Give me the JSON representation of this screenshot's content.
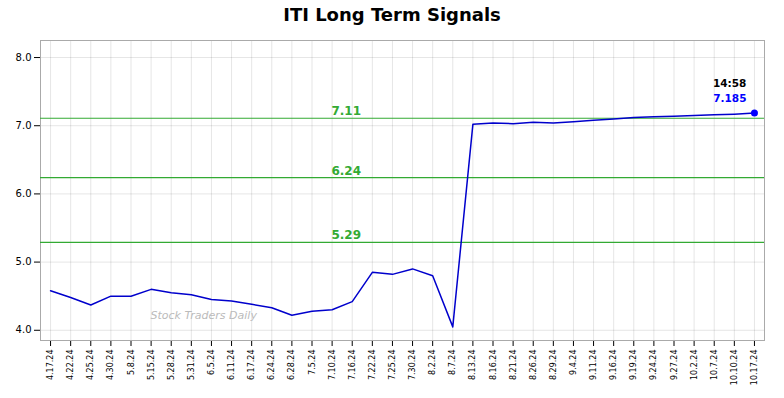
{
  "chart_data": {
    "type": "line",
    "title": "ITI Long Term Signals",
    "categories": [
      "4.17.24",
      "4.22.24",
      "4.25.24",
      "4.30.24",
      "5.8.24",
      "5.15.24",
      "5.28.24",
      "5.31.24",
      "6.5.24",
      "6.11.24",
      "6.17.24",
      "6.24.24",
      "6.28.24",
      "7.5.24",
      "7.10.24",
      "7.16.24",
      "7.22.24",
      "7.25.24",
      "7.30.24",
      "8.2.24",
      "8.7.24",
      "8.13.24",
      "8.16.24",
      "8.21.24",
      "8.26.24",
      "8.29.24",
      "9.4.24",
      "9.11.24",
      "9.16.24",
      "9.19.24",
      "9.24.24",
      "9.27.24",
      "10.2.24",
      "10.7.24",
      "10.10.24",
      "10.17.24"
    ],
    "values": [
      4.58,
      4.48,
      4.37,
      4.5,
      4.5,
      4.6,
      4.55,
      4.52,
      4.45,
      4.43,
      4.38,
      4.33,
      4.22,
      4.28,
      4.3,
      4.42,
      4.85,
      4.82,
      4.9,
      4.8,
      4.05,
      7.02,
      7.04,
      7.03,
      7.05,
      7.04,
      7.06,
      7.08,
      7.1,
      7.12,
      7.13,
      7.14,
      7.15,
      7.16,
      7.17,
      7.185
    ],
    "color": "#0000cc",
    "ylim": [
      3.85,
      8.25
    ],
    "yticks": [
      4,
      5,
      6,
      7,
      8
    ],
    "grid": true,
    "hlines": {
      "values": [
        7.11,
        6.24,
        5.29
      ],
      "color": "#33aa33"
    },
    "last_point": {
      "color": "#0000ff"
    },
    "annotations": [
      {
        "text": "14:58",
        "color": "#000000"
      },
      {
        "text": "7.185",
        "color": "#0000ff"
      }
    ],
    "watermark": {
      "text": "Stock Traders Daily",
      "color": "#bbbbbb"
    }
  }
}
